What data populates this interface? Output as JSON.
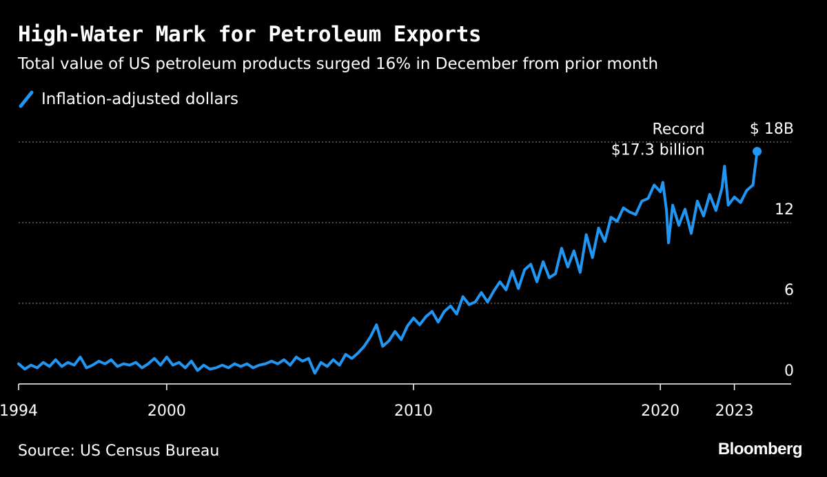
{
  "header": {
    "title": "High-Water Mark for Petroleum Exports",
    "subtitle": "Total value of US petroleum products surged 16% in December from prior month"
  },
  "legend": {
    "label": "Inflation-adjusted dollars"
  },
  "footer": {
    "source": "Source: US Census Bureau",
    "brand": "Bloomberg"
  },
  "colors": {
    "series": "#2196f3",
    "background": "#000000",
    "text": "#ffffff",
    "grid": "#777777"
  },
  "chart_data": {
    "type": "line",
    "title": "High-Water Mark for Petroleum Exports",
    "subtitle": "Total value of US petroleum products surged 16% in December from prior month",
    "xlabel": "",
    "ylabel": "",
    "xlim": [
      1994,
      2025.3
    ],
    "ylim": [
      0,
      18
    ],
    "x_ticks": [
      {
        "value": 1994,
        "label": "1994"
      },
      {
        "value": 2000,
        "label": "2000"
      },
      {
        "value": 2010,
        "label": "2010"
      },
      {
        "value": 2020,
        "label": "2020"
      },
      {
        "value": 2023,
        "label": "2023"
      }
    ],
    "y_ticks": [
      {
        "value": 0,
        "label": "0"
      },
      {
        "value": 6,
        "label": "6"
      },
      {
        "value": 12,
        "label": "12"
      },
      {
        "value": 18,
        "label": "$ 18B"
      }
    ],
    "grid": "horizontal dotted",
    "legend_position": "top-left",
    "annotation": {
      "lines": [
        "Record",
        "$17.3 billion"
      ],
      "x": 2023.92,
      "y": 17.3
    },
    "series": [
      {
        "name": "Inflation-adjusted dollars",
        "x": [
          1994.0,
          1994.25,
          1994.5,
          1994.75,
          1995.0,
          1995.25,
          1995.5,
          1995.75,
          1996.0,
          1996.25,
          1996.5,
          1996.75,
          1997.0,
          1997.25,
          1997.5,
          1997.75,
          1998.0,
          1998.25,
          1998.5,
          1998.75,
          1999.0,
          1999.25,
          1999.5,
          1999.75,
          2000.0,
          2000.25,
          2000.5,
          2000.75,
          2001.0,
          2001.25,
          2001.5,
          2001.75,
          2002.0,
          2002.25,
          2002.5,
          2002.75,
          2003.0,
          2003.25,
          2003.5,
          2003.75,
          2004.0,
          2004.25,
          2004.5,
          2004.75,
          2005.0,
          2005.25,
          2005.5,
          2005.75,
          2006.0,
          2006.25,
          2006.5,
          2006.75,
          2007.0,
          2007.25,
          2007.5,
          2007.75,
          2008.0,
          2008.25,
          2008.5,
          2008.75,
          2009.0,
          2009.25,
          2009.5,
          2009.75,
          2010.0,
          2010.25,
          2010.5,
          2010.75,
          2011.0,
          2011.25,
          2011.5,
          2011.75,
          2012.0,
          2012.25,
          2012.5,
          2012.75,
          2013.0,
          2013.25,
          2013.5,
          2013.75,
          2014.0,
          2014.25,
          2014.5,
          2014.75,
          2015.0,
          2015.25,
          2015.5,
          2015.75,
          2016.0,
          2016.25,
          2016.5,
          2016.75,
          2017.0,
          2017.25,
          2017.5,
          2017.75,
          2018.0,
          2018.25,
          2018.5,
          2018.75,
          2019.0,
          2019.25,
          2019.5,
          2019.75,
          2020.0,
          2020.1,
          2020.25,
          2020.33,
          2020.5,
          2020.75,
          2021.0,
          2021.25,
          2021.5,
          2021.75,
          2022.0,
          2022.25,
          2022.5,
          2022.6,
          2022.75,
          2023.0,
          2023.25,
          2023.5,
          2023.75,
          2023.92
        ],
        "values": [
          1.5,
          1.1,
          1.4,
          1.2,
          1.6,
          1.3,
          1.8,
          1.3,
          1.6,
          1.4,
          2.0,
          1.2,
          1.4,
          1.7,
          1.5,
          1.8,
          1.3,
          1.5,
          1.4,
          1.6,
          1.2,
          1.5,
          1.9,
          1.4,
          2.0,
          1.4,
          1.6,
          1.2,
          1.7,
          1.0,
          1.4,
          1.1,
          1.2,
          1.4,
          1.2,
          1.5,
          1.3,
          1.5,
          1.2,
          1.4,
          1.5,
          1.7,
          1.5,
          1.8,
          1.4,
          2.0,
          1.7,
          1.9,
          0.8,
          1.6,
          1.3,
          1.8,
          1.4,
          2.2,
          1.9,
          2.3,
          2.8,
          3.5,
          4.4,
          2.8,
          3.2,
          3.9,
          3.3,
          4.3,
          4.9,
          4.4,
          5.0,
          5.4,
          4.6,
          5.4,
          5.8,
          5.2,
          6.5,
          5.9,
          6.1,
          6.8,
          6.1,
          6.9,
          7.6,
          7.0,
          8.4,
          7.1,
          8.5,
          8.9,
          7.6,
          9.1,
          7.9,
          8.2,
          10.1,
          8.7,
          9.9,
          8.3,
          11.1,
          9.4,
          11.6,
          10.6,
          12.4,
          12.1,
          13.1,
          12.8,
          12.6,
          13.6,
          13.8,
          14.8,
          14.3,
          15.0,
          12.9,
          10.5,
          13.3,
          11.8,
          13.0,
          11.2,
          13.6,
          12.5,
          14.1,
          12.9,
          14.6,
          16.2,
          13.3,
          13.9,
          13.5,
          14.4,
          14.8,
          17.3
        ]
      }
    ]
  }
}
